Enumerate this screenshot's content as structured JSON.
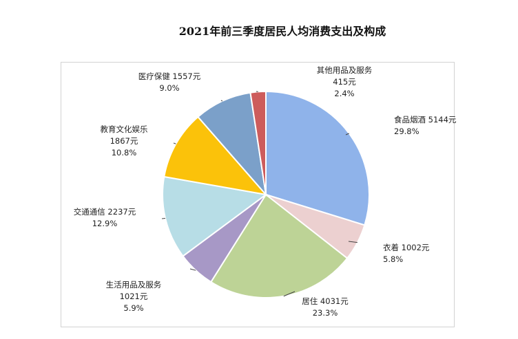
{
  "chart_data": {
    "type": "pie",
    "title": "2021年前三季度居民人均消费支出及构成",
    "unit": "元",
    "slices": [
      {
        "name": "食品烟酒",
        "value": 5144,
        "value_label": "5144元",
        "percent_label": "29.8%",
        "color": "#8fb3ea"
      },
      {
        "name": "衣着",
        "value": 1002,
        "value_label": "1002元",
        "percent_label": "5.8%",
        "color": "#ecd0d0"
      },
      {
        "name": "居住",
        "value": 4031,
        "value_label": "4031元",
        "percent_label": "23.3%",
        "color": "#bdd396"
      },
      {
        "name": "生活用品及服务",
        "value": 1021,
        "value_label": "1021元",
        "percent_label": "5.9%",
        "color": "#a798c6"
      },
      {
        "name": "交通通信",
        "value": 2237,
        "value_label": "2237元",
        "percent_label": "12.9%",
        "color": "#b7dde6"
      },
      {
        "name": "教育文化娱乐",
        "value": 1867,
        "value_label": "1867元",
        "percent_label": "10.8%",
        "color": "#fbc20a"
      },
      {
        "name": "医疗保健",
        "value": 1557,
        "value_label": "1557元",
        "percent_label": "9.0%",
        "color": "#7ba0c9"
      },
      {
        "name": "其他用品及服务",
        "value": 415,
        "value_label": "415元",
        "percent_label": "2.4%",
        "color": "#cd5c5c"
      }
    ]
  }
}
